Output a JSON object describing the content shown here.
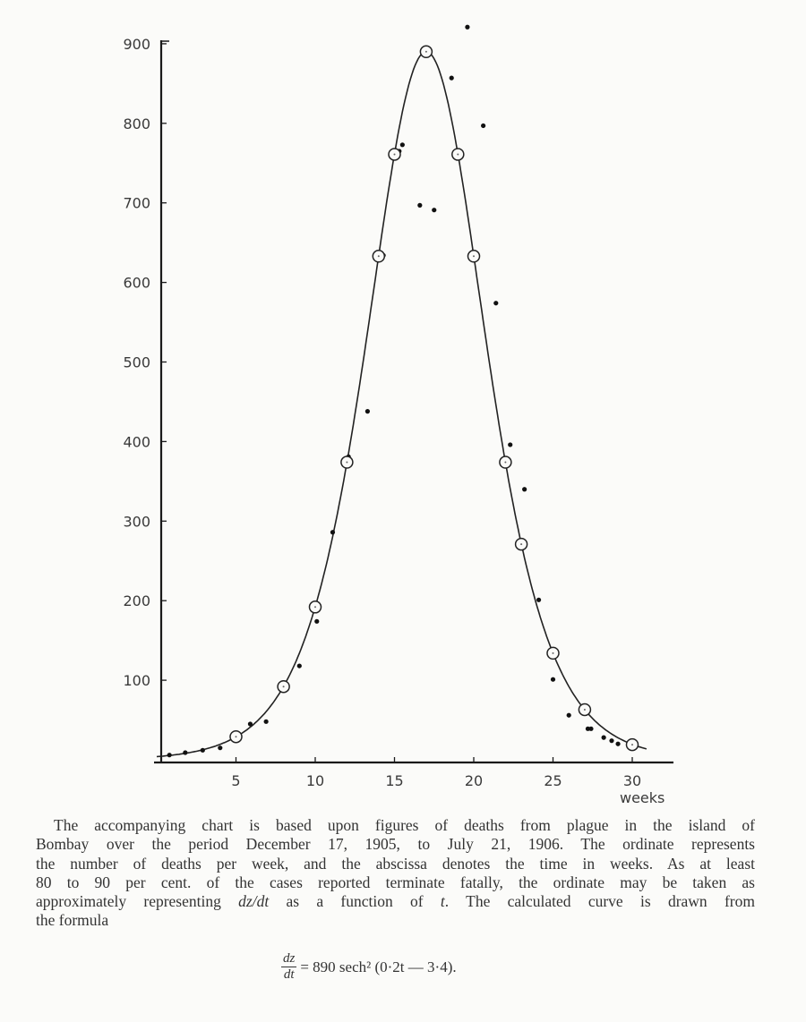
{
  "chart_data": {
    "type": "scatter",
    "xlabel": "weeks",
    "ylabel": "",
    "xlim": [
      0,
      32
    ],
    "ylim": [
      0,
      900
    ],
    "x_ticks": [
      "5",
      "10",
      "15",
      "20",
      "25",
      "30"
    ],
    "y_ticks": [
      "100",
      "200",
      "300",
      "400",
      "500",
      "600",
      "700",
      "800",
      "900"
    ],
    "grid": false,
    "legend": "none",
    "curve": {
      "formula": "890 sech²(0·2t − 3·4)",
      "amplitude": 890,
      "rate": 0.2,
      "shift": 3.4
    },
    "calculated_points": {
      "marker": "open-circle",
      "t": [
        5,
        8,
        10,
        12,
        14,
        15,
        17,
        19,
        20,
        22,
        23,
        25,
        27,
        30
      ],
      "values": [
        29,
        92,
        192,
        374,
        633,
        761,
        890,
        761,
        633,
        374,
        271,
        134,
        63,
        19
      ]
    },
    "observed_points": {
      "marker": "filled-dot",
      "t": [
        0.8,
        1.8,
        2.9,
        4.0,
        5.9,
        6.9,
        9.0,
        10.1,
        11.1,
        12.1,
        13.3,
        14.3,
        15.3,
        15.5,
        16.6,
        17.5,
        18.6,
        19.6,
        20.6,
        21.4,
        22.3,
        23.2,
        24.1,
        25.0,
        26.0,
        27.2,
        27.4,
        28.2,
        28.7,
        29.1,
        30.0
      ],
      "values": [
        6,
        9,
        12,
        15,
        45,
        48,
        118,
        174,
        286,
        381,
        438,
        634,
        765,
        773,
        697,
        691,
        857,
        921,
        797,
        574,
        396,
        340,
        201,
        101,
        56,
        39,
        39,
        28,
        24,
        20,
        24
      ]
    }
  },
  "caption": {
    "lines": [
      "The accompanying chart is based upon figures of deaths from plague in the island of",
      "Bombay over the period December 17, 1905, to July 21, 1906.  The ordinate represents",
      "the number of deaths per week, and the abscissa denotes the time in weeks.  As at least",
      "80 to 90 per cent. of the cases reported terminate fatally, the ordinate may be taken as"
    ],
    "line5": {
      "a": "approximately representing ",
      "b": "dz/dt",
      "c": " as a function of ",
      "d": "t",
      "e": ".  The calculated curve is drawn from"
    },
    "last": "the formula"
  },
  "formula": {
    "num": "dz",
    "den": "dt",
    "rhs": "= 890 sech² (0·2t — 3·4)."
  }
}
